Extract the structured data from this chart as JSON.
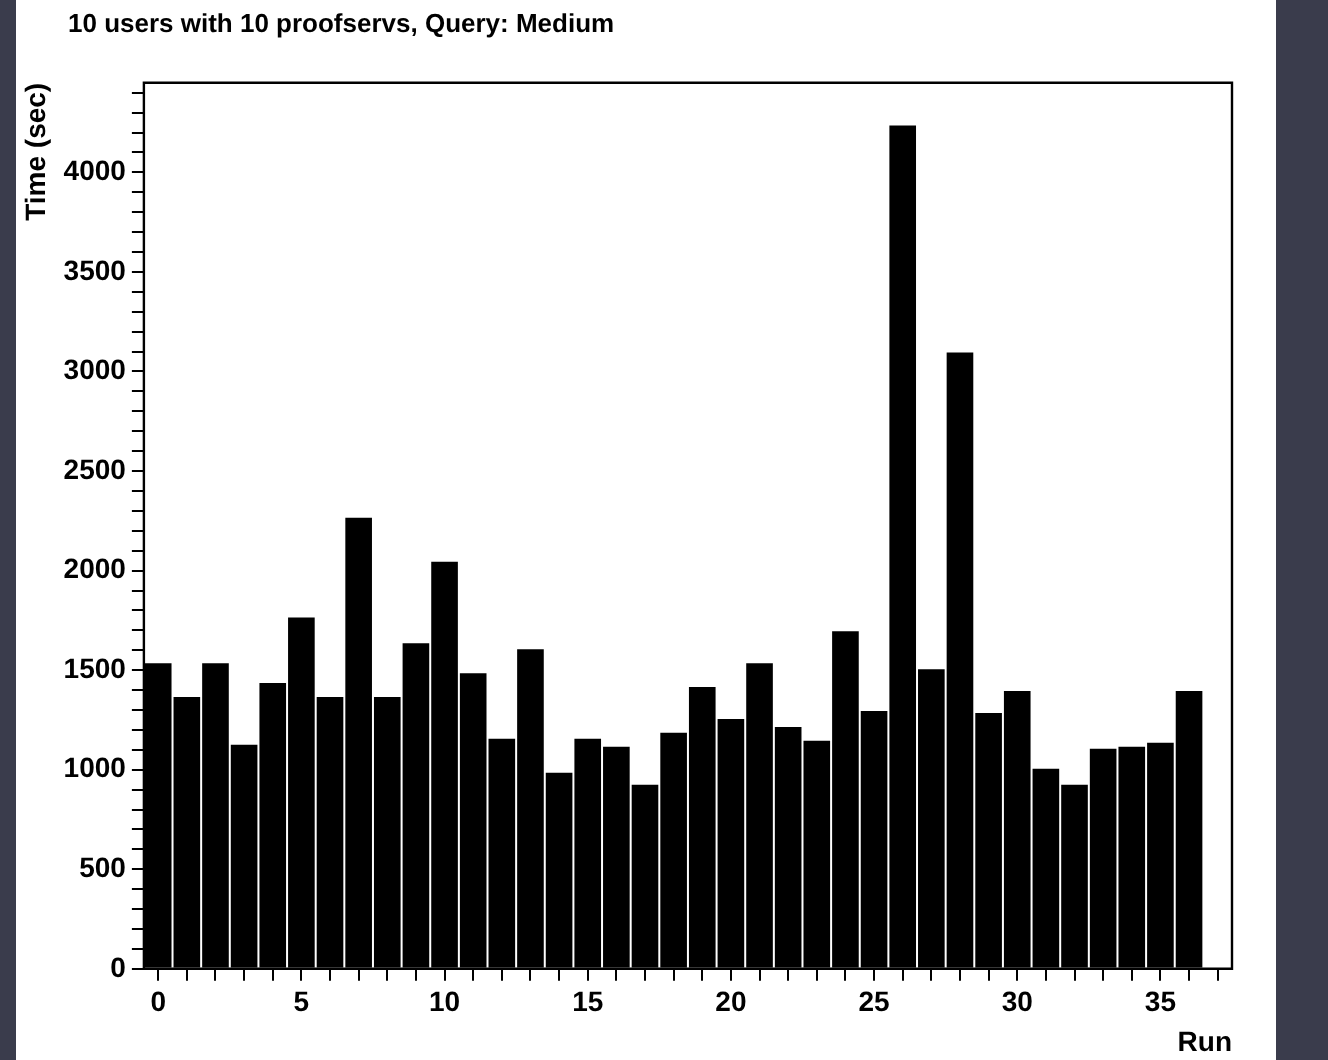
{
  "chart_data": {
    "type": "histogram",
    "title": "10 users with 10 proofservs, Query: Medium",
    "xlabel": "Run",
    "ylabel": "Time (sec)",
    "color": "#000000",
    "bins": [
      -0.5,
      0.5,
      1.5,
      2.5,
      3.5,
      4.5,
      5.5,
      6.5,
      7.5,
      8.5,
      9.5,
      10.5,
      11.5,
      12.5,
      13.5,
      14.5,
      15.5,
      16.5,
      17.5,
      18.5,
      19.5,
      20.5,
      21.5,
      22.5,
      23.5,
      24.5,
      25.5,
      26.5,
      27.5,
      28.5,
      29.5,
      30.5,
      31.5,
      32.5,
      33.5,
      34.5,
      35.5,
      36.5
    ],
    "values": [
      1540,
      1370,
      1540,
      1130,
      1440,
      1770,
      1370,
      2270,
      1370,
      1640,
      2050,
      1490,
      1160,
      1610,
      990,
      1160,
      1120,
      930,
      1190,
      1420,
      1260,
      1540,
      1220,
      1150,
      1700,
      1300,
      4240,
      1510,
      3100,
      1290,
      1400,
      1010,
      930,
      1110,
      1120,
      1140,
      1400
    ],
    "xlim": [
      -0.5,
      37.5
    ],
    "xticks": [
      0,
      {
        "value": 1,
        "label": null
      },
      {
        "value": 2,
        "label": null
      },
      {
        "value": 3,
        "label": null
      },
      {
        "value": 4,
        "label": null
      },
      5,
      {
        "value": 6,
        "label": null
      },
      {
        "value": 7,
        "label": null
      },
      {
        "value": 8,
        "label": null
      },
      {
        "value": 9,
        "label": null
      },
      10,
      {
        "value": 11,
        "label": null
      },
      {
        "value": 12,
        "label": null
      },
      {
        "value": 13,
        "label": null
      },
      {
        "value": 14,
        "label": null
      },
      15,
      {
        "value": 16,
        "label": null
      },
      {
        "value": 17,
        "label": null
      },
      {
        "value": 18,
        "label": null
      },
      {
        "value": 19,
        "label": null
      },
      20,
      {
        "value": 21,
        "label": null
      },
      {
        "value": 22,
        "label": null
      },
      {
        "value": 23,
        "label": null
      },
      {
        "value": 24,
        "label": null
      },
      25,
      {
        "value": 26,
        "label": null
      },
      {
        "value": 27,
        "label": null
      },
      {
        "value": 28,
        "label": null
      },
      {
        "value": 29,
        "label": null
      },
      30,
      {
        "value": 31,
        "label": null
      },
      {
        "value": 32,
        "label": null
      },
      {
        "value": 33,
        "label": null
      },
      {
        "value": 34,
        "label": null
      },
      35,
      {
        "value": 36,
        "label": null
      },
      {
        "value": 37,
        "label": null
      }
    ],
    "ylim": [
      0,
      4450
    ],
    "yticks": [
      0,
      {
        "value": 100,
        "label": null
      },
      {
        "value": 200,
        "label": null
      },
      {
        "value": 300,
        "label": null
      },
      {
        "value": 400,
        "label": null
      },
      500,
      {
        "value": 600,
        "label": null
      },
      {
        "value": 700,
        "label": null
      },
      {
        "value": 800,
        "label": null
      },
      {
        "value": 900,
        "label": null
      },
      1000,
      {
        "value": 1100,
        "label": null
      },
      {
        "value": 1200,
        "label": null
      },
      {
        "value": 1300,
        "label": null
      },
      {
        "value": 1400,
        "label": null
      },
      1500,
      {
        "value": 1600,
        "label": null
      },
      {
        "value": 1700,
        "label": null
      },
      {
        "value": 1800,
        "label": null
      },
      {
        "value": 1900,
        "label": null
      },
      2000,
      {
        "value": 2100,
        "label": null
      },
      {
        "value": 2200,
        "label": null
      },
      {
        "value": 2300,
        "label": null
      },
      {
        "value": 2400,
        "label": null
      },
      2500,
      {
        "value": 2600,
        "label": null
      },
      {
        "value": 2700,
        "label": null
      },
      {
        "value": 2800,
        "label": null
      },
      {
        "value": 2900,
        "label": null
      },
      3000,
      {
        "value": 3100,
        "label": null
      },
      {
        "value": 3200,
        "label": null
      },
      {
        "value": 3300,
        "label": null
      },
      {
        "value": 3400,
        "label": null
      },
      3500,
      {
        "value": 3600,
        "label": null
      },
      {
        "value": 3700,
        "label": null
      },
      {
        "value": 3800,
        "label": null
      },
      {
        "value": 3900,
        "label": null
      },
      4000,
      {
        "value": 4100,
        "label": null
      },
      {
        "value": 4200,
        "label": null
      },
      {
        "value": 4300,
        "label": null
      },
      {
        "value": 4400,
        "label": null
      }
    ],
    "grid": false,
    "legend": false
  }
}
